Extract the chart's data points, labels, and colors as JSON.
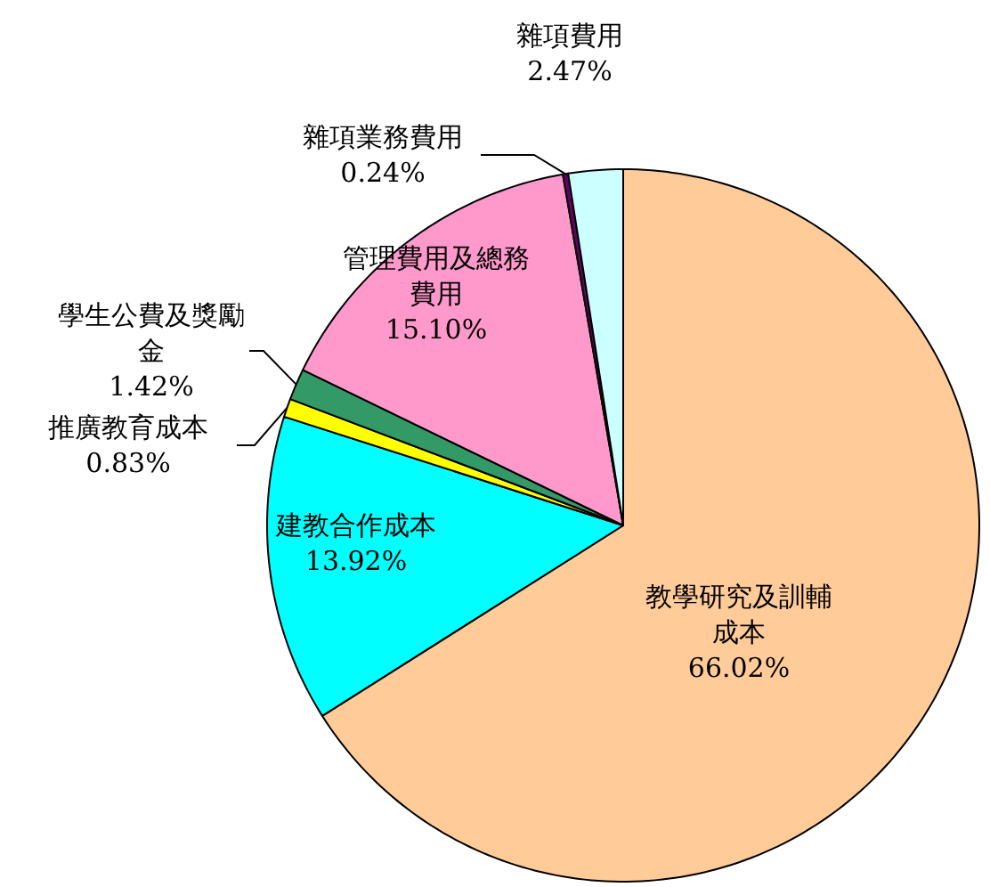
{
  "chart_data": {
    "type": "pie",
    "categories": [
      "教學研究及訓輔成本",
      "建教合作成本",
      "推廣教育成本",
      "學生公費及獎勵金",
      "管理費用及總務費用",
      "雜項業務費用",
      "雜項費用"
    ],
    "values": [
      66.02,
      13.92,
      0.83,
      1.42,
      15.1,
      0.24,
      2.47
    ],
    "value_labels": [
      "66.02%",
      "13.92%",
      "0.83%",
      "1.42%",
      "15.10%",
      "0.24%",
      "2.47%"
    ],
    "colors": [
      "#ffcc99",
      "#00ffff",
      "#ffff00",
      "#339966",
      "#ff99cc",
      "#660066",
      "#ccffff"
    ]
  }
}
